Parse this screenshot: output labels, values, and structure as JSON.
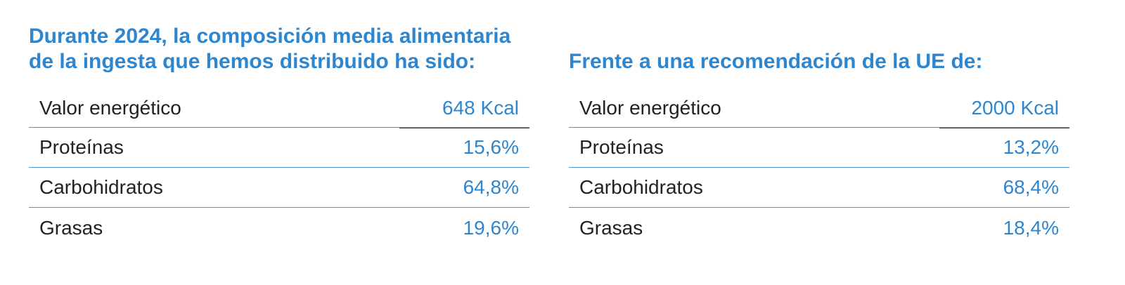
{
  "left_panel": {
    "heading_line1": "Durante 2024, la composición media alimentaria",
    "heading_line2": "de la ingesta que hemos distribuido ha sido:",
    "rows": [
      {
        "label": "Valor energético",
        "value": "648 Kcal"
      },
      {
        "label": "Proteínas",
        "value": "15,6%"
      },
      {
        "label": "Carbohidratos",
        "value": "64,8%"
      },
      {
        "label": "Grasas",
        "value": "19,6%"
      }
    ]
  },
  "right_panel": {
    "heading_line1": "Frente a una recomendación de la UE de:",
    "rows": [
      {
        "label": "Valor energético",
        "value": "2000 Kcal"
      },
      {
        "label": "Proteínas",
        "value": "13,2%"
      },
      {
        "label": "Carbohidratos",
        "value": "68,4%"
      },
      {
        "label": "Grasas",
        "value": "18,4%"
      }
    ]
  },
  "colors": {
    "accent_blue": "#2e86cf",
    "text_dark": "#222222",
    "rule_blue": "#4a94d4",
    "rule_dark": "#444444"
  }
}
